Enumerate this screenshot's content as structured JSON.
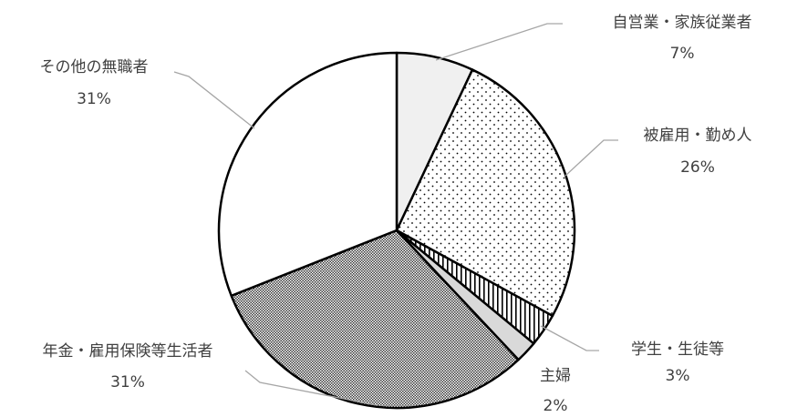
{
  "chart_data": {
    "type": "pie",
    "title": "",
    "start_angle_deg": 0,
    "direction": "clockwise",
    "slices": [
      {
        "label": "自営業・家族従業者",
        "value_label": "7%",
        "value": 7,
        "pattern": "light-gray"
      },
      {
        "label": "被雇用・勤め人",
        "value_label": "26%",
        "value": 26,
        "pattern": "dots"
      },
      {
        "label": "学生・生徒等",
        "value_label": "3%",
        "value": 3,
        "pattern": "vertical-stripes"
      },
      {
        "label": "主婦",
        "value_label": "2%",
        "value": 2,
        "pattern": "gray"
      },
      {
        "label": "年金・雇用保険等生活者",
        "value_label": "31%",
        "value": 31,
        "pattern": "checker"
      },
      {
        "label": "その他の無職者",
        "value_label": "31%",
        "value": 31,
        "pattern": "white"
      }
    ],
    "colors": {
      "outline": "#000000",
      "leader": "#a6a6a6",
      "text": "#404040",
      "light-gray": "#f0f0f0",
      "gray": "#d9d9d9"
    }
  }
}
